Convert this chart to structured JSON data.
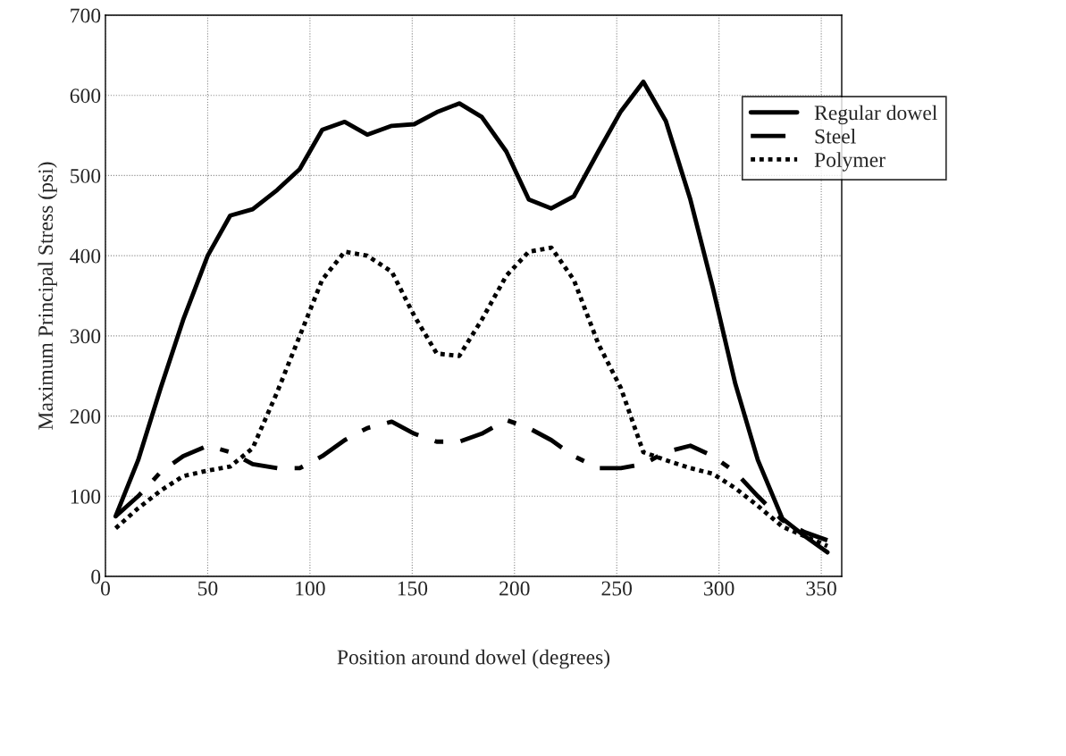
{
  "chart_data": {
    "type": "line",
    "xlabel": "Position around dowel (degrees)",
    "ylabel": "Maximum Principal Stress (psi)",
    "x": [
      5,
      16,
      27,
      38,
      50,
      61,
      72,
      84,
      95,
      106,
      117,
      128,
      140,
      151,
      162,
      173,
      184,
      196,
      207,
      218,
      229,
      241,
      252,
      263,
      274,
      286,
      297,
      308,
      319,
      331,
      342,
      353
    ],
    "series": [
      {
        "name": "Regular dowel",
        "color": "#000000",
        "line_style": "solid",
        "values": [
          75,
          145,
          235,
          320,
          400,
          450,
          458,
          482,
          508,
          557,
          567,
          551,
          562,
          564,
          579,
          590,
          573,
          530,
          470,
          459,
          474,
          530,
          580,
          617,
          568,
          470,
          360,
          240,
          145,
          72,
          50,
          30
        ]
      },
      {
        "name": "Steel",
        "color": "#000000",
        "line_style": "dashed",
        "values": [
          75,
          100,
          130,
          150,
          163,
          155,
          140,
          135,
          135,
          150,
          170,
          185,
          193,
          178,
          168,
          168,
          178,
          195,
          185,
          170,
          150,
          135,
          135,
          140,
          155,
          163,
          150,
          130,
          100,
          70,
          55,
          45
        ]
      },
      {
        "name": "Polymer",
        "color": "#000000",
        "line_style": "dotted",
        "values": [
          60,
          85,
          107,
          125,
          132,
          137,
          160,
          230,
          300,
          370,
          405,
          400,
          380,
          325,
          278,
          275,
          320,
          375,
          405,
          410,
          370,
          290,
          235,
          155,
          145,
          135,
          128,
          110,
          88,
          62,
          50,
          38
        ]
      }
    ],
    "xlim": [
      0,
      360
    ],
    "ylim": [
      0,
      700
    ],
    "xticks": [
      0,
      50,
      100,
      150,
      200,
      250,
      300,
      350
    ],
    "yticks": [
      0,
      100,
      200,
      300,
      400,
      500,
      600,
      700
    ],
    "grid": true,
    "legend": "top right"
  }
}
